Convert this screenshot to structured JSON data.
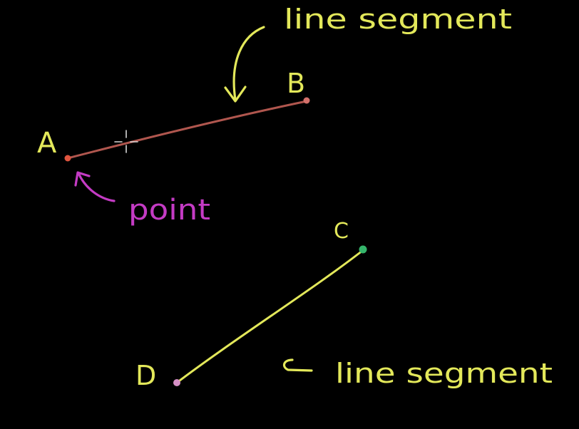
{
  "colors": {
    "background": "#000000",
    "yellow": "#e3e85a",
    "segment_ab": "#b0564e",
    "point_a": "#e0553f",
    "point_b": "#d4706a",
    "point_c": "#35b56b",
    "point_d": "#d690c6",
    "magenta": "#c43bc4",
    "cursor": "#d8d8d8"
  },
  "labels": {
    "a": "A",
    "b": "B",
    "c": "C",
    "d": "D",
    "line_segment_top": "line segment",
    "line_segment_bottom": "line segment",
    "point": "point"
  },
  "icons": {
    "arrow_top": "curved-arrow-down-icon",
    "arrow_point": "curved-arrow-up-icon",
    "arrow_bottom": "hook-arrow-left-icon",
    "cursor": "crosshair-cursor-icon"
  }
}
